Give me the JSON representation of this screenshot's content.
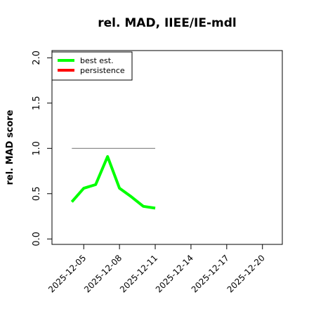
{
  "chart_data": {
    "type": "line",
    "title": "rel. MAD, IIEE/IE-mdl",
    "y_label": "rel. MAD score",
    "x": [
      "2025-12-04",
      "2025-12-05",
      "2025-12-06",
      "2025-12-07",
      "2025-12-08",
      "2025-12-09",
      "2025-12-10",
      "2025-12-11"
    ],
    "series": [
      {
        "name": "best est.",
        "color": "#00ff00",
        "line_color": "#00ff00",
        "values": [
          0.41,
          0.56,
          0.6,
          0.91,
          0.56,
          0.465,
          0.36,
          0.34
        ]
      },
      {
        "name": "persistence",
        "color": "#ff0000",
        "line_color": "#808080",
        "values": [
          1.0,
          1.0,
          1.0,
          1.0,
          1.0,
          1.0,
          1.0,
          1.0
        ]
      }
    ],
    "xlim": [
      "2025-12-02T08:00",
      "2025-12-21T16:00"
    ],
    "xticks": [
      "2025-12-05",
      "2025-12-08",
      "2025-12-11",
      "2025-12-14",
      "2025-12-17",
      "2025-12-20"
    ],
    "ylim": [
      -0.06,
      2.08
    ],
    "yticks": [
      0.0,
      0.5,
      1.0,
      1.5,
      2.0
    ],
    "legend": "upper left"
  }
}
